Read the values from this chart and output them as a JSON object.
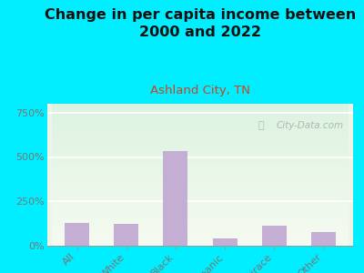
{
  "title": "Change in per capita income between\n2000 and 2022",
  "subtitle": "Ashland City, TN",
  "categories": [
    "All",
    "White",
    "Black",
    "Hispanic",
    "Multirace",
    "Other"
  ],
  "values": [
    130,
    125,
    535,
    40,
    115,
    75
  ],
  "bar_color": "#c4aed4",
  "background_color": "#00eeff",
  "plot_bg_color": "#eef5e6",
  "title_fontsize": 11.5,
  "title_color": "#111111",
  "subtitle_fontsize": 9.5,
  "subtitle_color": "#cc4422",
  "ytick_labels": [
    "0%",
    "250%",
    "500%",
    "750%"
  ],
  "ytick_values": [
    0,
    250,
    500,
    750
  ],
  "ylim": [
    0,
    800
  ],
  "tick_color": "#777777",
  "watermark": "City-Data.com",
  "watermark_color": "#aaaaaa"
}
